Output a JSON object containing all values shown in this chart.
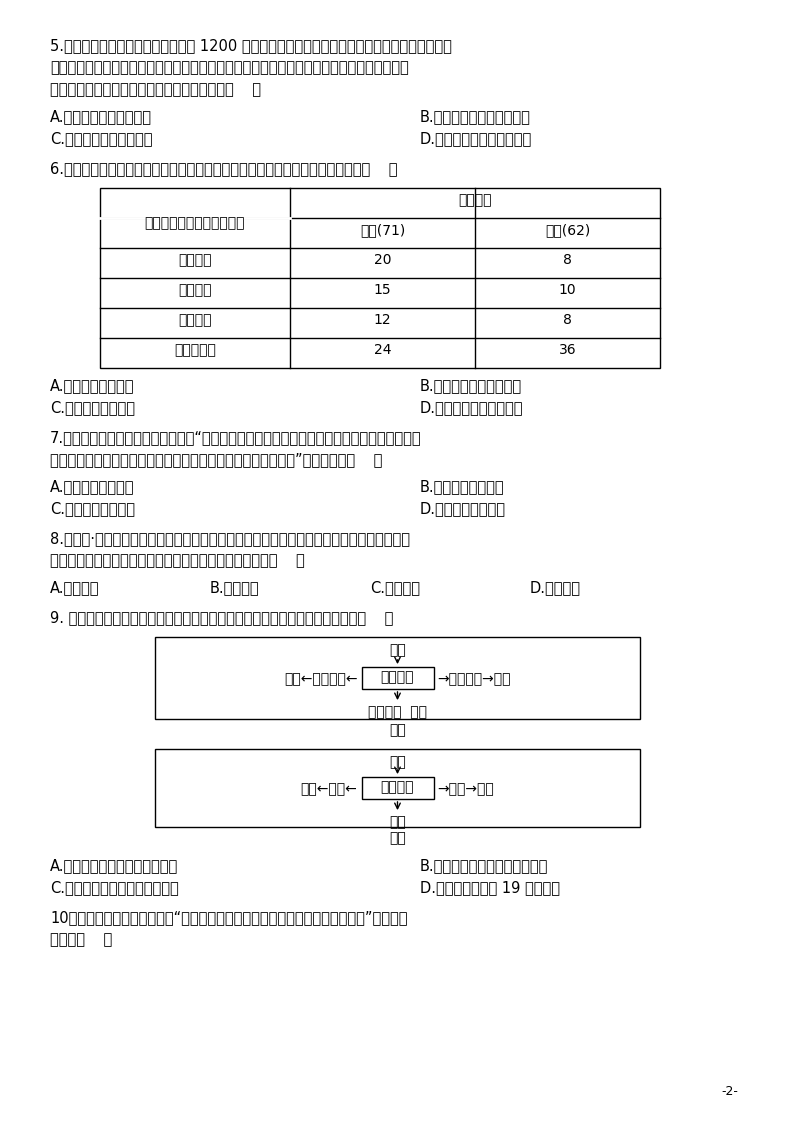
{
  "bg_color": "#ffffff",
  "text_color": "#000000",
  "font_size_body": 10.5,
  "page_number": "-2-",
  "q5_text": [
    "5.清朝雍正时期获得密奏权的官员达 1200 人，密奏内容涉及范围很宿泛，如军务、政务、官吏、",
    "民情、水旱等。雍正时期摊丁入亩、改土归流等重要政策，都是臣下密奏先提出，雍正帝又与",
    "臣下反复讨论后做出的决策。据此可知密折制（    ）"
  ],
  "q5_options": [
    [
      "A.是民意上达中央的途径",
      "B.体现古代官僚体制的完善"
    ],
    [
      "C.是专制主义发展的结果",
      "D.逐渐取代了军机处的职能"
    ]
  ],
  "q6_intro": "6.以下是宋代宰相祖辈任官情况统计表，据学者研究整理而成，反映出两宋时期（    ）",
  "table_header1": "曾祖、祖父或父亲任官情况",
  "table_header2": "宰相人数",
  "table_col1": "北宋(71)",
  "table_col2": "南宋(62)",
  "table_rows": [
    [
      "高级官员",
      "20",
      "8"
    ],
    [
      "中级官员",
      "15",
      "10"
    ],
    [
      "低级官员",
      "12",
      "8"
    ],
    [
      "无官职记录",
      "24",
      "36"
    ]
  ],
  "q6_options": [
    [
      "A.世家大族影响巨大",
      "B.两宋宰相权力日益下降"
    ],
    [
      "C.宗法制度依然存在",
      "D.科举制度功能日益强化"
    ]
  ],
  "q7_text": [
    "7.《吕氏春秋》中引用神农之教曰：“土有当年而不耕者，则天下或受其饥矣；女有当年而不绩",
    "者，则天下或受其寒矣。故身亲耕，妻亲绩，所以见致民利也。”材料指出了（    ）"
  ],
  "q7_options": [
    [
      "A.重农抑商的必要性",
      "B.井田瓦解的必然性"
    ],
    [
      "C.小农经济的重要性",
      "D.自然经济的脆弱性"
    ]
  ],
  "q8_text": [
    "8.《礼记·月令》载：季夏之月（六月），都说烧草取灰或沤草使腐用作肥料。深耕、施肥、",
    "粪种、一年再获。这反映我国古代农业生产的主要特点是（    ）"
  ],
  "q8_options": [
    "A.鐵犊牛耕",
    "B.精耕细作",
    "C.农牧结合",
    "D.千耦其耘"
  ],
  "q9_intro": "9. 下面两幅图片反映的是中国古代的两种手工业生产形式，对其解读正确的是（    ）",
  "diagram1_label": "图一",
  "diagram2_label": "图二",
  "diag1_yuanliao": "原料",
  "diag1_center": "手工作坊",
  "diag1_left_text": "市场←部分商品←",
  "diag1_right_text": "→部分产品→市场",
  "diag1_bottom": "家庭成员  学徒",
  "diag2_yuanliao": "原料",
  "diag2_center": "手工工场",
  "diag2_left_text": "市场←产品←",
  "diag2_right_text": "→产品→市场",
  "diag2_bottom": "工人",
  "q9_options": [
    [
      "A.图一的产品主要是茶叶和棉花",
      "B.图一的现象阻碍了经济的发展"
    ],
    [
      "C.手工工场最早出现在江南地区",
      "D.图二现象出现于 19 世纪中期"
    ]
  ],
  "q10_text": [
    "10．明朝中期，江南农村出现“昔日逐末之人尚少，今去农而改工商者三倍于前”的现象。",
    "这说明（    ）"
  ]
}
